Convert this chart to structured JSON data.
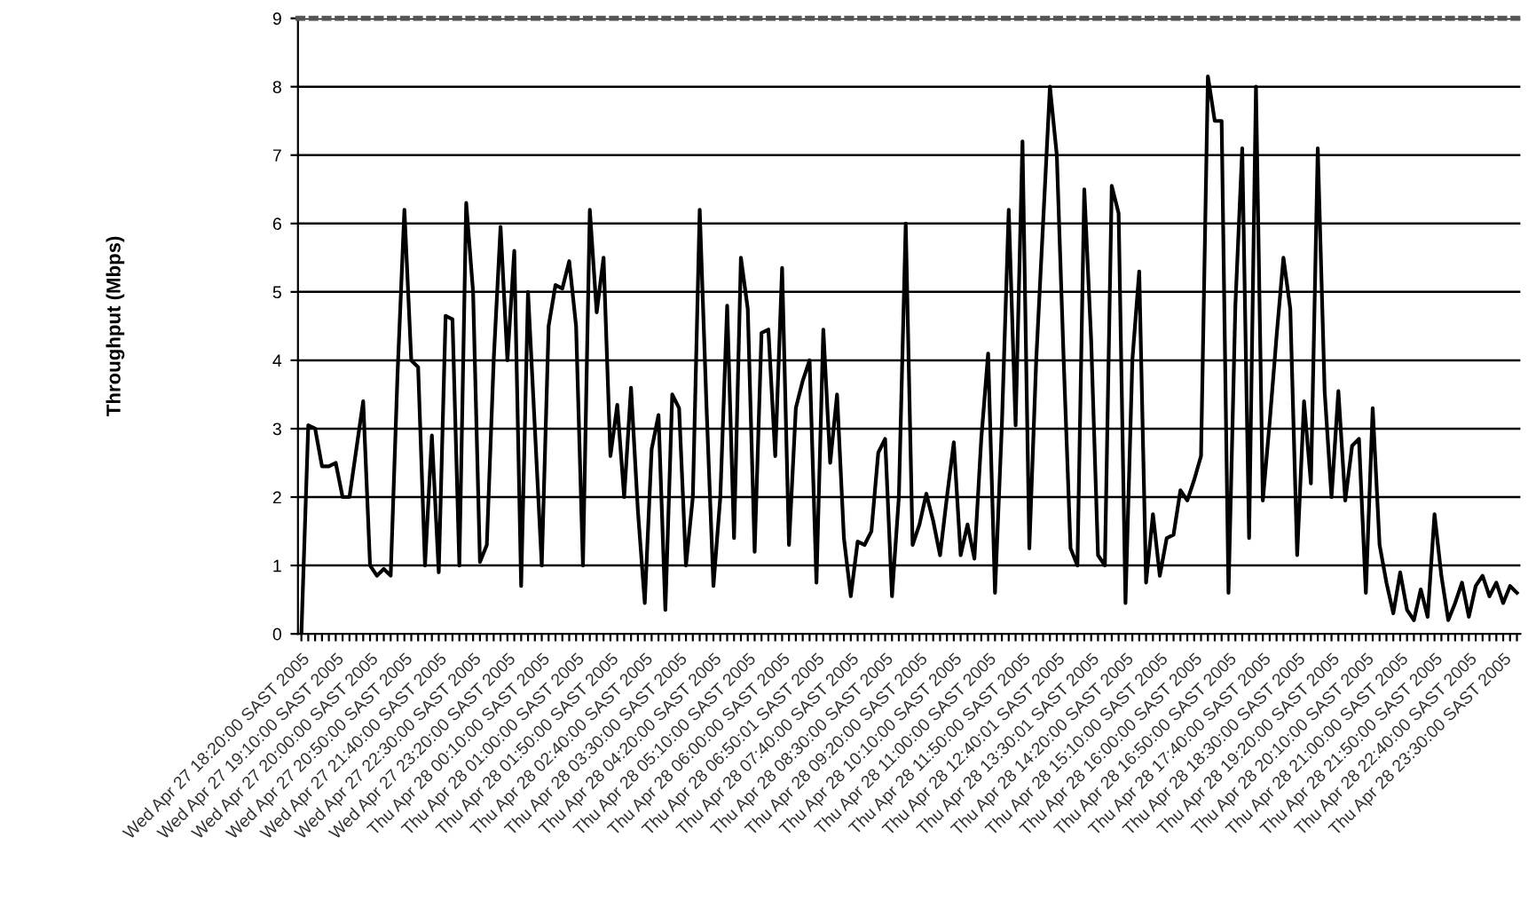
{
  "chart_data": {
    "type": "line",
    "ylabel": "Throughput (Mbps)",
    "categories": [
      "Wed Apr 27 18:20:00 SAST 2005",
      null,
      null,
      null,
      null,
      "Wed Apr 27 19:10:00 SAST 2005",
      null,
      null,
      null,
      null,
      "Wed Apr 27 20:00:00 SAST 2005",
      null,
      null,
      null,
      null,
      "Wed Apr 27 20:50:00 SAST 2005",
      null,
      null,
      null,
      null,
      "Wed Apr 27 21:40:00 SAST 2005",
      null,
      null,
      null,
      null,
      "Wed Apr 27 22:30:00 SAST 2005",
      null,
      null,
      null,
      null,
      "Wed Apr 27 23:20:00 SAST 2005",
      null,
      null,
      null,
      null,
      "Thu Apr 28 00:10:00 SAST 2005",
      null,
      null,
      null,
      null,
      "Thu Apr 28 01:00:00 SAST 2005",
      null,
      null,
      null,
      null,
      "Thu Apr 28 01:50:00 SAST 2005",
      null,
      null,
      null,
      null,
      "Thu Apr 28 02:40:00 SAST 2005",
      null,
      null,
      null,
      null,
      "Thu Apr 28 03:30:00 SAST 2005",
      null,
      null,
      null,
      null,
      "Thu Apr 28 04:20:00 SAST 2005",
      null,
      null,
      null,
      null,
      "Thu Apr 28 05:10:00 SAST 2005",
      null,
      null,
      null,
      null,
      "Thu Apr 28 06:00:00 SAST 2005",
      null,
      null,
      null,
      null,
      "Thu Apr 28 06:50:01 SAST 2005",
      null,
      null,
      null,
      null,
      "Thu Apr 28 07:40:00 SAST 2005",
      null,
      null,
      null,
      null,
      "Thu Apr 28 08:30:00 SAST 2005",
      null,
      null,
      null,
      null,
      "Thu Apr 28 09:20:00 SAST 2005",
      null,
      null,
      null,
      null,
      "Thu Apr 28 10:10:00 SAST 2005",
      null,
      null,
      null,
      null,
      "Thu Apr 28 11:00:00 SAST 2005",
      null,
      null,
      null,
      null,
      "Thu Apr 28 11:50:00 SAST 2005",
      null,
      null,
      null,
      null,
      "Thu Apr 28 12:40:01 SAST 2005",
      null,
      null,
      null,
      null,
      "Thu Apr 28 13:30:01 SAST 2005",
      null,
      null,
      null,
      null,
      "Thu Apr 28 14:20:00 SAST 2005",
      null,
      null,
      null,
      null,
      "Thu Apr 28 15:10:00 SAST 2005",
      null,
      null,
      null,
      null,
      "Thu Apr 28 16:00:00 SAST 2005",
      null,
      null,
      null,
      null,
      "Thu Apr 28 16:50:00 SAST 2005",
      null,
      null,
      null,
      null,
      "Thu Apr 28 17:40:00 SAST 2005",
      null,
      null,
      null,
      null,
      "Thu Apr 28 18:30:00 SAST 2005",
      null,
      null,
      null,
      null,
      "Thu Apr 28 19:20:00 SAST 2005",
      null,
      null,
      null,
      null,
      "Thu Apr 28 20:10:00 SAST 2005",
      null,
      null,
      null,
      null,
      "Thu Apr 28 21:00:00 SAST 2005",
      null,
      null,
      null,
      null,
      "Thu Apr 28 21:50:00 SAST 2005",
      null,
      null,
      null,
      null,
      "Thu Apr 28 22:40:00 SAST 2005",
      null,
      null,
      null,
      null,
      "Thu Apr 28 23:30:00 SAST 2005",
      null,
      null
    ],
    "series": [
      {
        "color": "#000000",
        "values": [
          0.0,
          3.05,
          3.0,
          2.45,
          2.45,
          2.5,
          2.0,
          2.0,
          2.7,
          3.4,
          1.0,
          0.85,
          0.95,
          0.85,
          3.8,
          6.2,
          4.0,
          3.9,
          1.0,
          2.9,
          0.9,
          4.65,
          4.6,
          1.0,
          6.3,
          5.0,
          1.05,
          1.3,
          4.0,
          5.95,
          4.0,
          5.6,
          0.7,
          5.0,
          3.0,
          1.0,
          4.5,
          5.1,
          5.05,
          5.45,
          4.5,
          1.0,
          6.2,
          4.7,
          5.5,
          2.6,
          3.35,
          2.0,
          3.6,
          1.8,
          0.45,
          2.7,
          3.2,
          0.35,
          3.5,
          3.3,
          1.0,
          2.0,
          6.2,
          3.3,
          0.7,
          2.0,
          4.8,
          1.4,
          5.5,
          4.75,
          1.2,
          4.4,
          4.45,
          2.6,
          5.35,
          1.3,
          3.3,
          3.7,
          4.0,
          0.75,
          4.45,
          2.5,
          3.5,
          1.4,
          0.55,
          1.35,
          1.3,
          1.5,
          2.65,
          2.85,
          0.55,
          2.0,
          6.0,
          1.3,
          1.6,
          2.05,
          1.65,
          1.15,
          2.0,
          2.8,
          1.15,
          1.6,
          1.1,
          2.85,
          4.1,
          0.6,
          3.05,
          6.2,
          3.05,
          7.2,
          1.25,
          4.0,
          6.0,
          8.0,
          7.0,
          4.0,
          1.25,
          1.0,
          6.5,
          4.3,
          1.15,
          1.0,
          6.55,
          6.15,
          0.45,
          4.0,
          5.3,
          0.75,
          1.75,
          0.85,
          1.4,
          1.45,
          2.1,
          1.95,
          2.25,
          2.6,
          8.15,
          7.5,
          7.5,
          0.6,
          4.8,
          7.1,
          1.4,
          8.0,
          1.95,
          3.1,
          4.35,
          5.5,
          4.75,
          1.15,
          3.4,
          2.2,
          7.1,
          3.55,
          2.0,
          3.55,
          1.95,
          2.75,
          2.85,
          0.6,
          3.3,
          1.3,
          0.75,
          0.3,
          0.9,
          0.35,
          0.2,
          0.65,
          0.25,
          1.75,
          0.85,
          0.2,
          0.45,
          0.75,
          0.25,
          0.7,
          0.85,
          0.55,
          0.75,
          0.45,
          0.7,
          0.6
        ]
      }
    ],
    "ylim": [
      0,
      9
    ],
    "yticks": [
      0,
      1,
      2,
      3,
      4,
      5,
      6,
      7,
      8,
      9
    ],
    "grid": "y",
    "legend": false,
    "marker": "none",
    "line_style": "solid"
  }
}
